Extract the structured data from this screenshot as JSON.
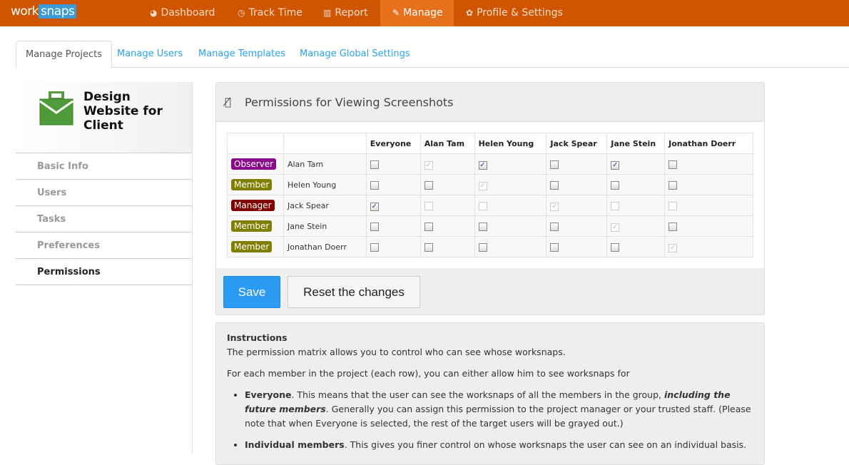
{
  "brand": {
    "logo_work": "work",
    "logo_snaps": "snaps",
    "color": "#cf5500"
  },
  "nav": [
    {
      "label": "Dashboard",
      "icon": "dashboard-icon",
      "glyph": "◕"
    },
    {
      "label": "Track Time",
      "icon": "clock-icon",
      "glyph": "◷"
    },
    {
      "label": "Report",
      "icon": "bar-chart-icon",
      "glyph": "▥"
    },
    {
      "label": "Manage",
      "icon": "wrench-icon",
      "glyph": "✎",
      "active": true
    },
    {
      "label": "Profile & Settings",
      "icon": "gear-icon",
      "glyph": "✿"
    }
  ],
  "tabs": [
    "Manage Projects",
    "Manage Users",
    "Manage Templates",
    "Manage Global Settings"
  ],
  "project": {
    "title": "Design Website for Client"
  },
  "sidebar": [
    "Basic Info",
    "Users",
    "Tasks",
    "Preferences",
    "Permissions"
  ],
  "panel": {
    "title": "Permissions for Viewing Screenshots",
    "save": "Save",
    "reset": "Reset the changes"
  },
  "matrix": {
    "columns": [
      "Everyone",
      "Alan Tam",
      "Helen Young",
      "Jack Spear",
      "Jane Stein",
      "Jonathan Doerr"
    ],
    "rows": [
      {
        "role": "Observer",
        "role_color": "#8b0a8b",
        "name": "Alan Tam",
        "cells": [
          "off",
          "self",
          "on",
          "off",
          "on",
          "off"
        ]
      },
      {
        "role": "Member",
        "role_color": "#807f00",
        "name": "Helen Young",
        "cells": [
          "off",
          "off",
          "self",
          "off",
          "off",
          "off"
        ]
      },
      {
        "role": "Manager",
        "role_color": "#800000",
        "name": "Jack Spear",
        "cells": [
          "on",
          "disabled",
          "disabled",
          "self",
          "disabled",
          "disabled"
        ]
      },
      {
        "role": "Member",
        "role_color": "#807f00",
        "name": "Jane Stein",
        "cells": [
          "off",
          "off",
          "off",
          "off",
          "self",
          "off"
        ]
      },
      {
        "role": "Member",
        "role_color": "#807f00",
        "name": "Jonathan Doerr",
        "cells": [
          "off",
          "off",
          "off",
          "off",
          "off",
          "self"
        ]
      }
    ]
  },
  "instructions": {
    "title": "Instructions",
    "p1": "The permission matrix allows you to control who can see whose worksnaps.",
    "p2": "For each member in the project (each row), you can either allow him to see worksnaps for",
    "b1_bold": "Everyone",
    "b1_a": ". This means that the user can see the worksnaps of all the members in the group, ",
    "b1_em": "including the future members",
    "b1_b": ". Generally you can assign this permission to the project manager or your trusted staff. (Please note that when Everyone is selected, the rest of the target users will be grayed out.)",
    "b2_bold": "Individual members",
    "b2_a": ". This gives you finer control on whose worksnaps the user can see on an individual basis."
  }
}
